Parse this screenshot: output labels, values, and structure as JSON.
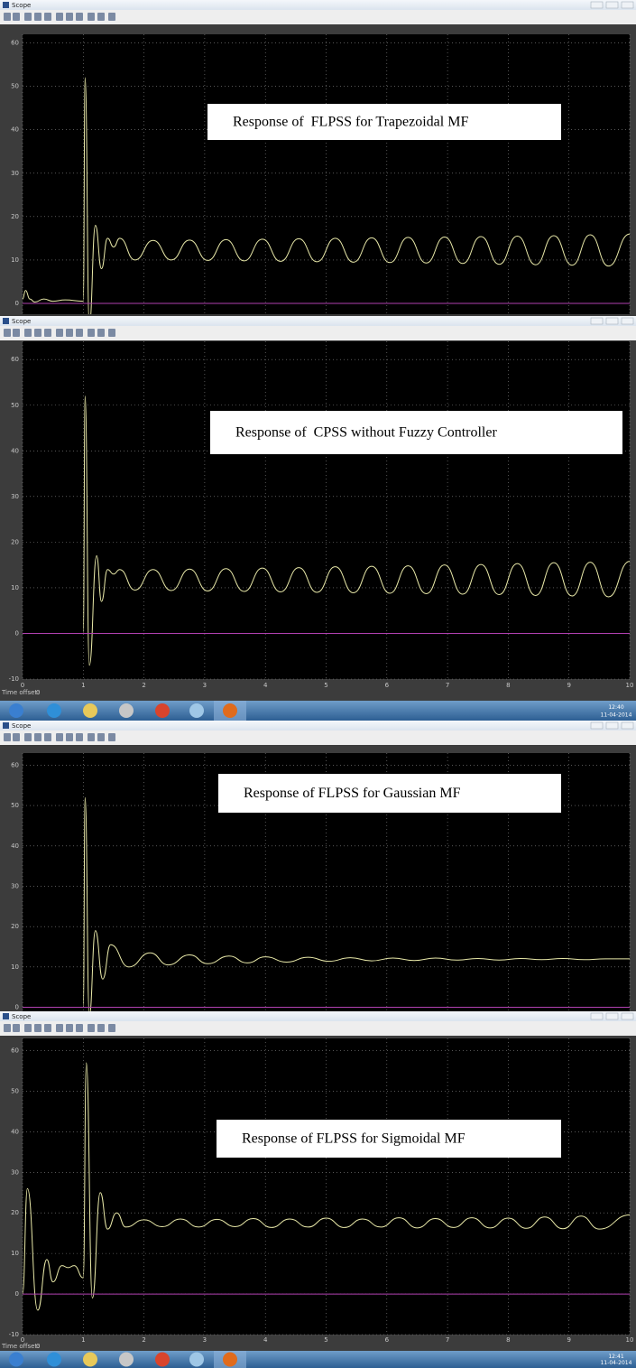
{
  "windows": [
    {
      "title": "Scope",
      "plot": {
        "type": "line",
        "annotation": "Response of  FLPSS for Trapezoidal MF",
        "xlim": [
          0,
          10
        ],
        "ylim": [
          -2.5,
          62
        ],
        "xticks": [
          0,
          1,
          2,
          3,
          4,
          5,
          6,
          7,
          8,
          9,
          10
        ],
        "yticks": [
          0,
          10,
          20,
          30,
          40,
          50,
          60
        ],
        "x_tick_labels": false,
        "grid": true,
        "series": [
          {
            "color": "#e8e8a8",
            "x": [
              0,
              0.05,
              0.12,
              0.2,
              0.35,
              0.5,
              0.7,
              1.0,
              1.03,
              1.1,
              1.2,
              1.3,
              1.4,
              1.5,
              1.6,
              1.85,
              2.15,
              2.45,
              2.75,
              3.05,
              3.35,
              3.65,
              3.95,
              4.25,
              4.55,
              4.85,
              5.15,
              5.45,
              5.75,
              6.05,
              6.35,
              6.65,
              6.95,
              7.25,
              7.55,
              7.85,
              8.15,
              8.45,
              8.75,
              9.05,
              9.35,
              9.65,
              10
            ],
            "values": [
              1,
              3,
              1,
              0.3,
              1,
              0.5,
              0.8,
              0.5,
              52,
              -5,
              18,
              8,
              15,
              13,
              15,
              10,
              14.5,
              10,
              14.6,
              9.9,
              14.7,
              9.8,
              14.8,
              9.7,
              14.9,
              9.6,
              15,
              9.5,
              15.1,
              9.4,
              15.2,
              9.3,
              15.3,
              9.2,
              15.4,
              9.0,
              15.5,
              8.9,
              15.6,
              8.8,
              15.8,
              8.6,
              16
            ]
          },
          {
            "color": "#b040b0",
            "x": [
              0,
              10
            ],
            "values": [
              0,
              0
            ]
          }
        ]
      }
    },
    {
      "title": "Scope",
      "plot": {
        "type": "line",
        "annotation": "Response of  CPSS without Fuzzy Controller",
        "xlim": [
          0,
          10
        ],
        "ylim": [
          -10,
          64
        ],
        "xticks": [
          0,
          1,
          2,
          3,
          4,
          5,
          6,
          7,
          8,
          9,
          10
        ],
        "yticks": [
          -10,
          0,
          10,
          20,
          30,
          40,
          50,
          60
        ],
        "x_tick_labels": true,
        "grid": true,
        "series": [
          {
            "color": "#e8e8a8",
            "x": [
              0,
              1.0,
              1.03,
              1.1,
              1.22,
              1.3,
              1.4,
              1.5,
              1.6,
              1.85,
              2.15,
              2.45,
              2.75,
              3.05,
              3.35,
              3.65,
              3.95,
              4.25,
              4.55,
              4.85,
              5.15,
              5.45,
              5.75,
              6.05,
              6.35,
              6.65,
              6.95,
              7.25,
              7.55,
              7.85,
              8.15,
              8.45,
              8.75,
              9.05,
              9.35,
              9.65,
              10
            ],
            "values": [
              0,
              0,
              52,
              -7,
              17,
              7,
              14,
              13,
              14,
              9.5,
              14,
              9.4,
              14.1,
              9.3,
              14.2,
              9.2,
              14.3,
              9.1,
              14.4,
              9,
              14.6,
              8.9,
              14.7,
              8.8,
              14.8,
              8.7,
              15,
              8.6,
              15.1,
              8.5,
              15.3,
              8.3,
              15.5,
              8.2,
              15.6,
              8.0,
              15.8
            ]
          },
          {
            "color": "#b040b0",
            "x": [
              0,
              10
            ],
            "values": [
              0,
              0
            ]
          }
        ]
      },
      "status": {
        "time_offset_label": "Time offset:",
        "time_offset": 0
      },
      "taskbar": {
        "time": "12:40",
        "date": "11-04-2014"
      }
    },
    {
      "title": "Scope",
      "plot": {
        "type": "line",
        "annotation": "Response of FLPSS for Gaussian MF",
        "xlim": [
          0,
          10
        ],
        "ylim": [
          -1,
          63
        ],
        "xticks": [
          0,
          1,
          2,
          3,
          4,
          5,
          6,
          7,
          8,
          9,
          10
        ],
        "yticks": [
          0,
          10,
          20,
          30,
          40,
          50,
          60
        ],
        "x_tick_labels": false,
        "grid": true,
        "series": [
          {
            "color": "#e8e8a8",
            "x": [
              0,
              1.0,
              1.03,
              1.1,
              1.2,
              1.32,
              1.45,
              1.75,
              2.1,
              2.4,
              2.75,
              3.05,
              3.4,
              3.7,
              4.0,
              4.35,
              4.7,
              5.05,
              5.4,
              5.75,
              6.1,
              6.45,
              6.8,
              7.15,
              7.5,
              7.85,
              8.2,
              8.55,
              8.9,
              9.25,
              9.6,
              10
            ],
            "values": [
              0,
              0,
              52,
              -2,
              19,
              7,
              15.5,
              10,
              13.5,
              10.5,
              13,
              10.8,
              12.7,
              11,
              12.5,
              11.2,
              12.4,
              11.4,
              12.3,
              11.5,
              12.2,
              11.6,
              12.2,
              11.7,
              12.1,
              11.7,
              12.1,
              11.8,
              12.1,
              11.8,
              12,
              12
            ]
          },
          {
            "color": "#b040b0",
            "x": [
              0,
              10
            ],
            "values": [
              0,
              0
            ]
          }
        ]
      }
    },
    {
      "title": "Scope",
      "plot": {
        "type": "line",
        "annotation": "Response of FLPSS for Sigmoidal MF",
        "xlim": [
          0,
          10
        ],
        "ylim": [
          -10,
          63
        ],
        "xticks": [
          0,
          1,
          2,
          3,
          4,
          5,
          6,
          7,
          8,
          9,
          10
        ],
        "yticks": [
          -10,
          0,
          10,
          20,
          30,
          40,
          50,
          60
        ],
        "x_tick_labels": true,
        "grid": true,
        "series": [
          {
            "color": "#e8e8a8",
            "x": [
              0,
              0.08,
              0.25,
              0.4,
              0.5,
              0.65,
              0.75,
              0.85,
              1.0,
              1.05,
              1.15,
              1.28,
              1.4,
              1.55,
              1.7,
              2.0,
              2.3,
              2.6,
              2.9,
              3.2,
              3.5,
              3.8,
              4.1,
              4.4,
              4.7,
              5.0,
              5.3,
              5.6,
              5.9,
              6.2,
              6.5,
              6.8,
              7.1,
              7.4,
              7.7,
              8.0,
              8.3,
              8.6,
              8.9,
              9.2,
              9.5,
              10
            ],
            "values": [
              0,
              26,
              -4,
              8.5,
              3,
              7,
              6.5,
              7,
              4,
              57,
              -1,
              25,
              16,
              20,
              16.5,
              18.3,
              16.6,
              18.5,
              16.5,
              18.4,
              16.6,
              18.6,
              16.4,
              18.5,
              16.5,
              18.7,
              16.4,
              18.5,
              16.5,
              18.8,
              16.3,
              18.6,
              16.4,
              18.8,
              16.3,
              18.7,
              16.2,
              19,
              16.1,
              19.2,
              16.0,
              19.5
            ]
          },
          {
            "color": "#b040b0",
            "x": [
              0,
              10
            ],
            "values": [
              0,
              0
            ]
          }
        ]
      },
      "status": {
        "time_offset_label": "Time offset:",
        "time_offset": 0
      },
      "taskbar": {
        "time": "12:41",
        "date": "11-04-2014"
      }
    }
  ]
}
